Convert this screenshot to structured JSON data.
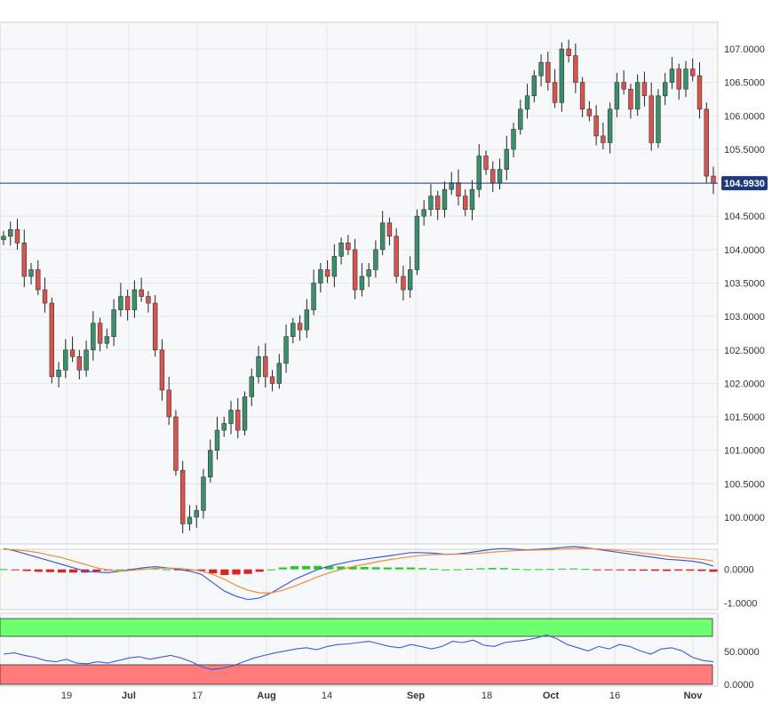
{
  "chart_data": [
    {
      "type": "candlestick",
      "title": "",
      "current_price": "104.9930",
      "ylim": [
        99.6,
        107.4
      ],
      "y_ticks": [
        "100.0000",
        "100.5000",
        "101.0000",
        "101.5000",
        "102.0000",
        "102.5000",
        "103.0000",
        "103.5000",
        "104.0000",
        "104.5000",
        "105.0000",
        "105.5000",
        "106.0000",
        "106.5000",
        "107.0000"
      ],
      "x_ticks": [
        {
          "label": "19",
          "bold": false
        },
        {
          "label": "Jul",
          "bold": true
        },
        {
          "label": "17",
          "bold": false
        },
        {
          "label": "Aug",
          "bold": true
        },
        {
          "label": "14",
          "bold": false
        },
        {
          "label": "Sep",
          "bold": true
        },
        {
          "label": "18",
          "bold": false
        },
        {
          "label": "Oct",
          "bold": true
        },
        {
          "label": "16",
          "bold": false
        },
        {
          "label": "Nov",
          "bold": true
        }
      ],
      "bullish_color": "#3c8f6c",
      "bearish_color": "#d9534f",
      "price_line_color": "#1f3a7a",
      "closes": [
        104.2,
        104.3,
        104.1,
        103.6,
        103.7,
        103.4,
        103.2,
        102.1,
        102.2,
        102.5,
        102.4,
        102.2,
        102.5,
        102.9,
        102.6,
        102.7,
        103.1,
        103.3,
        103.1,
        103.4,
        103.3,
        103.2,
        102.5,
        101.9,
        101.5,
        100.7,
        99.9,
        100.0,
        100.1,
        100.6,
        101.0,
        101.3,
        101.4,
        101.6,
        101.3,
        101.8,
        102.1,
        102.4,
        102.1,
        102.0,
        102.3,
        102.7,
        102.9,
        102.8,
        103.1,
        103.5,
        103.7,
        103.6,
        103.9,
        104.1,
        104.0,
        103.4,
        103.6,
        103.7,
        104.0,
        104.4,
        104.2,
        103.6,
        103.4,
        103.7,
        104.5,
        104.6,
        104.8,
        104.6,
        104.9,
        105.0,
        104.8,
        104.6,
        104.9,
        105.4,
        105.2,
        105.0,
        105.2,
        105.5,
        105.8,
        106.1,
        106.3,
        106.6,
        106.8,
        106.5,
        106.2,
        107.0,
        106.9,
        106.5,
        106.1,
        106.0,
        105.7,
        105.6,
        106.1,
        106.5,
        106.4,
        106.1,
        106.5,
        106.3,
        105.6,
        106.3,
        106.5,
        106.7,
        106.4,
        106.7,
        106.6,
        106.1,
        105.1,
        104.99
      ],
      "y_axis_note": "candles read from price axis",
      "y_min_tick": 100.0
    },
    {
      "type": "line",
      "indicator": "MACD",
      "y_ticks": [
        "0.0000",
        "-1.0000"
      ],
      "ylim": [
        -1.2,
        0.6
      ],
      "series": [
        {
          "name": "",
          "color": "#3b5bdb",
          "values": [
            0.62,
            0.55,
            0.45,
            0.35,
            0.25,
            0.15,
            0.05,
            -0.05,
            -0.08,
            -0.1,
            -0.05,
            0.0,
            0.05,
            0.08,
            0.05,
            0.0,
            -0.05,
            -0.15,
            -0.4,
            -0.65,
            -0.8,
            -0.9,
            -0.85,
            -0.7,
            -0.5,
            -0.3,
            -0.15,
            0.0,
            0.1,
            0.18,
            0.25,
            0.3,
            0.35,
            0.4,
            0.45,
            0.5,
            0.5,
            0.48,
            0.45,
            0.46,
            0.5,
            0.55,
            0.6,
            0.62,
            0.6,
            0.58,
            0.6,
            0.62,
            0.65,
            0.68,
            0.65,
            0.6,
            0.55,
            0.5,
            0.45,
            0.4,
            0.35,
            0.3,
            0.28,
            0.25,
            0.2,
            0.1
          ]
        },
        {
          "name": "",
          "color": "#f08c3a",
          "values": [
            0.6,
            0.58,
            0.55,
            0.5,
            0.42,
            0.35,
            0.25,
            0.15,
            0.05,
            -0.02,
            -0.05,
            -0.03,
            0.0,
            0.03,
            0.04,
            0.03,
            0.0,
            -0.05,
            -0.15,
            -0.3,
            -0.48,
            -0.62,
            -0.7,
            -0.7,
            -0.62,
            -0.5,
            -0.36,
            -0.22,
            -0.1,
            0.0,
            0.08,
            0.15,
            0.22,
            0.28,
            0.33,
            0.38,
            0.42,
            0.44,
            0.45,
            0.45,
            0.46,
            0.48,
            0.51,
            0.54,
            0.56,
            0.57,
            0.58,
            0.59,
            0.6,
            0.62,
            0.62,
            0.61,
            0.59,
            0.56,
            0.52,
            0.48,
            0.44,
            0.4,
            0.36,
            0.33,
            0.3,
            0.25
          ]
        }
      ],
      "histogram_positive_color": "#22cc22",
      "histogram_negative_color": "#dd2222"
    },
    {
      "type": "line",
      "indicator": "RSI",
      "y_ticks": [
        "50.0000",
        "0.0000"
      ],
      "ylim": [
        0,
        100
      ],
      "overbought_color": "#6dff6d",
      "oversold_color": "#ff7b7b",
      "series": [
        {
          "name": "",
          "color": "#3b5bdb",
          "values": [
            50,
            52,
            48,
            45,
            40,
            38,
            42,
            36,
            35,
            38,
            36,
            40,
            44,
            46,
            42,
            45,
            48,
            44,
            38,
            30,
            26,
            28,
            32,
            38,
            44,
            48,
            52,
            55,
            58,
            60,
            57,
            62,
            65,
            66,
            68,
            70,
            66,
            62,
            60,
            65,
            62,
            58,
            62,
            70,
            68,
            72,
            64,
            62,
            68,
            70,
            72,
            75,
            80,
            74,
            65,
            60,
            55,
            62,
            58,
            65,
            62,
            55,
            50,
            58,
            60,
            55,
            45,
            40,
            38
          ]
        }
      ]
    }
  ]
}
